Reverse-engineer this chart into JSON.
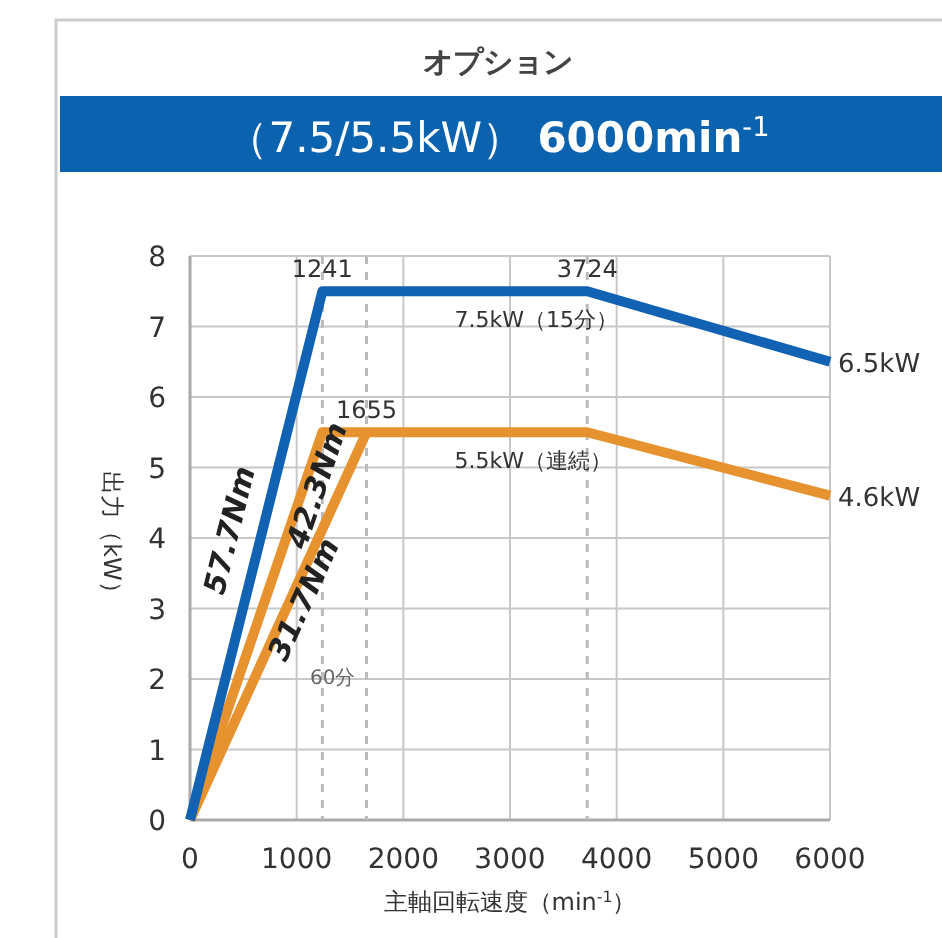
{
  "chart_data": {
    "type": "line",
    "title": "オプション",
    "subtitle": "（7.5/5.5kW）  **6000min**$^{-1}$",
    "xlabel": "主軸回転速度（min$^{-1}$）",
    "ylabel": "出力（kW）",
    "xlim": [
      0,
      6000
    ],
    "ylim": [
      0,
      8
    ],
    "xticks": [
      0,
      1000,
      2000,
      3000,
      4000,
      5000,
      6000
    ],
    "yticks": [
      0,
      1,
      2,
      3,
      4,
      5,
      6,
      7,
      8
    ],
    "grid": true,
    "marker": "none",
    "line_style": "solid",
    "series": [
      {
        "color": "#1262b3",
        "x": [
          0,
          1241,
          3724,
          6000
        ],
        "values": [
          0,
          7.5,
          7.5,
          6.5
        ]
      },
      {
        "color": "#e6932f",
        "x": [
          0,
          1241,
          3724,
          6000
        ],
        "values": [
          0,
          5.5,
          5.5,
          4.6
        ]
      },
      {
        "color": "#e6932f",
        "x": [
          0,
          1655
        ],
        "values": [
          0,
          5.5
        ]
      }
    ],
    "ref_lines": [
      {
        "axis": "x",
        "value": 1241,
        "line_style": "dashed",
        "color": "#bbbbbb"
      },
      {
        "axis": "x",
        "value": 1655,
        "line_style": "dashed",
        "color": "#bbbbbb"
      },
      {
        "axis": "x",
        "value": 3724,
        "line_style": "dashed",
        "color": "#bbbbbb"
      }
    ],
    "annotations": [
      {
        "text": "1241",
        "x": 1241,
        "y": 7.5
      },
      {
        "text": "3724",
        "x": 3724,
        "y": 7.5
      },
      {
        "text": "1655",
        "x": 1655,
        "y": 5.5
      },
      {
        "text": "7.5kW（15分）",
        "x": 2480,
        "y": 7.5
      },
      {
        "text": "5.5kW（連続）",
        "x": 2480,
        "y": 5.5
      },
      {
        "text": "6.5kW",
        "x": 6000,
        "y": 6.5
      },
      {
        "text": "4.6kW",
        "x": 6000,
        "y": 4.6
      },
      {
        "text": "57.7Nm",
        "x": 662,
        "y": 4
      },
      {
        "text": "42.3Nm",
        "x": 1083,
        "y": 4.8
      },
      {
        "text": "31.7Nm",
        "x": 963,
        "y": 3.2
      },
      "60分"
    ]
  }
}
